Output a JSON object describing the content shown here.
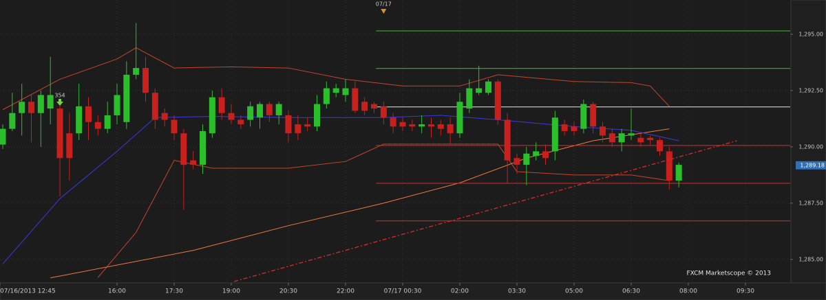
{
  "chart_data": {
    "type": "candlestick",
    "color_up": "#2bc02b",
    "color_down": "#c8201c",
    "xlim": [
      -0.29,
      82.7
    ],
    "ylim": [
      1283.96,
      1296.52
    ],
    "yticks": [
      {
        "value": 1285,
        "label": "1,285.00"
      },
      {
        "value": 1287.5,
        "label": "1,287.50"
      },
      {
        "value": 1290,
        "label": "1,290.00"
      },
      {
        "value": 1292.5,
        "label": "1,292.50"
      },
      {
        "value": 1295,
        "label": "1,295.00"
      }
    ],
    "xticks": [
      {
        "value": -1,
        "label": "07/16/2013 12:45"
      },
      {
        "value": 12,
        "label": "16:00"
      },
      {
        "value": 18,
        "label": "17:30"
      },
      {
        "value": 24,
        "label": "19:00"
      },
      {
        "value": 30,
        "label": "20:30"
      },
      {
        "value": 36,
        "label": "22:00"
      },
      {
        "value": 42,
        "label": "07/17 00:30"
      },
      {
        "value": 48,
        "label": "02:00"
      },
      {
        "value": 54,
        "label": "03:30"
      },
      {
        "value": 60,
        "label": "05:00"
      },
      {
        "value": 66,
        "label": "06:30"
      },
      {
        "value": 72,
        "label": "08:00"
      },
      {
        "value": 78,
        "label": "09:30"
      }
    ],
    "grid": true,
    "open": [
      1290.1,
      1290.8,
      1291.5,
      1292.0,
      1291.5,
      1291.7,
      1291.7,
      1290.6,
      1290.6,
      1291.8,
      1291.1,
      1290.8,
      1291.4,
      1291.1,
      1293.2,
      1293.5,
      1292.4,
      1291.5,
      1291.2,
      1290.6,
      1289.4,
      1289.2,
      1290.6,
      1292.2,
      1291.5,
      1291.2,
      1291.2,
      1291.3,
      1291.9,
      1291.4,
      1291.4,
      1291.0,
      1291.0,
      1290.9,
      1291.9,
      1292.4,
      1292.3,
      1292.6,
      1292.0,
      1291.9,
      1291.8,
      1291.3,
      1291.1,
      1291.0,
      1290.9,
      1291.0,
      1291.0,
      1291.0,
      1290.6,
      1291.7,
      1292.4,
      1292.4,
      1292.9,
      1291.2,
      1289.5,
      1289.2,
      1289.6,
      1289.8,
      1289.8,
      1291.0,
      1290.9,
      1290.8,
      1291.9,
      1290.9,
      1290.6,
      1290.2,
      1290.5,
      1290.4,
      1290.4,
      1290.3,
      1289.8,
      1288.5
    ],
    "high": [
      1291.0,
      1292.4,
      1292.8,
      1292.3,
      1292.5,
      1294.0,
      1292.0,
      1291.5,
      1292.8,
      1292.2,
      1291.4,
      1292.0,
      1292.8,
      1293.8,
      1295.5,
      1294.0,
      1292.6,
      1291.7,
      1291.4,
      1290.8,
      1289.8,
      1291.0,
      1292.5,
      1292.6,
      1291.9,
      1291.4,
      1292.0,
      1292.0,
      1292.0,
      1292.0,
      1291.6,
      1291.4,
      1291.3,
      1292.3,
      1292.9,
      1292.8,
      1293.0,
      1292.9,
      1292.2,
      1292.0,
      1292.0,
      1291.5,
      1291.3,
      1291.2,
      1291.4,
      1291.3,
      1291.2,
      1291.3,
      1292.4,
      1293.0,
      1293.6,
      1293.0,
      1293.0,
      1291.5,
      1289.7,
      1290.0,
      1290.2,
      1290.1,
      1291.6,
      1291.2,
      1291.1,
      1292.1,
      1292.0,
      1291.1,
      1290.8,
      1290.8,
      1291.7,
      1290.6,
      1290.5,
      1290.4,
      1290.0,
      1289.3
    ],
    "low": [
      1289.9,
      1290.7,
      1290.5,
      1290.2,
      1290.0,
      1291.0,
      1287.8,
      1288.5,
      1290.3,
      1290.3,
      1290.5,
      1290.6,
      1291.0,
      1290.8,
      1293.0,
      1292.0,
      1290.8,
      1290.9,
      1290.3,
      1287.2,
      1289.0,
      1288.8,
      1290.4,
      1291.2,
      1291.0,
      1290.8,
      1290.9,
      1290.8,
      1291.1,
      1291.0,
      1290.2,
      1290.3,
      1290.7,
      1290.7,
      1291.7,
      1292.2,
      1292.0,
      1291.5,
      1291.4,
      1291.5,
      1291.0,
      1290.6,
      1290.7,
      1290.7,
      1290.6,
      1290.4,
      1290.5,
      1290.1,
      1290.4,
      1291.5,
      1292.3,
      1292.3,
      1291.0,
      1288.4,
      1288.8,
      1288.3,
      1289.4,
      1289.2,
      1289.4,
      1290.5,
      1290.5,
      1290.6,
      1290.6,
      1290.2,
      1290.0,
      1289.8,
      1290.3,
      1290.0,
      1290.1,
      1289.6,
      1288.1,
      1288.2
    ],
    "close": [
      1290.8,
      1291.5,
      1292.0,
      1291.5,
      1292.3,
      1292.3,
      1289.5,
      1289.5,
      1291.8,
      1291.1,
      1290.8,
      1291.4,
      1292.3,
      1293.2,
      1293.5,
      1292.4,
      1291.2,
      1291.2,
      1290.6,
      1289.2,
      1289.2,
      1290.7,
      1292.2,
      1291.5,
      1291.2,
      1291.0,
      1291.8,
      1291.9,
      1291.4,
      1291.9,
      1290.6,
      1290.6,
      1290.9,
      1291.9,
      1292.6,
      1292.6,
      1292.6,
      1291.6,
      1291.6,
      1291.7,
      1291.3,
      1290.9,
      1290.9,
      1290.9,
      1291.0,
      1290.9,
      1290.8,
      1290.6,
      1292.0,
      1292.6,
      1292.6,
      1292.9,
      1291.2,
      1289.4,
      1289.2,
      1289.7,
      1289.8,
      1289.5,
      1291.3,
      1290.7,
      1290.7,
      1291.9,
      1290.9,
      1290.5,
      1290.2,
      1290.6,
      1290.6,
      1290.2,
      1290.3,
      1289.8,
      1288.5,
      1289.2
    ],
    "overlays": [
      {
        "color": "#c8452a",
        "x": [
          0,
          6,
          12,
          14,
          18,
          24,
          30,
          36,
          42,
          48,
          52,
          60,
          66,
          68,
          70
        ],
        "values": [
          1291.65,
          1293.0,
          1293.9,
          1294.4,
          1293.5,
          1293.55,
          1293.5,
          1293.0,
          1292.7,
          1292.7,
          1293.2,
          1292.9,
          1292.85,
          1292.7,
          1291.8
        ]
      },
      {
        "color": "#c8452a",
        "x": [
          10,
          14,
          18,
          22,
          30,
          36,
          40,
          48,
          52,
          54,
          60,
          66,
          70
        ],
        "values": [
          1284.2,
          1286.2,
          1289.4,
          1289.05,
          1289.05,
          1289.35,
          1290.12,
          1290.12,
          1290.12,
          1288.9,
          1288.75,
          1288.75,
          1288.5
        ]
      },
      {
        "color": "#f07840",
        "x": [
          5,
          20,
          30,
          40,
          48,
          55,
          62,
          70
        ],
        "values": [
          1284.18,
          1285.4,
          1286.5,
          1287.5,
          1288.4,
          1289.5,
          1290.27,
          1290.8
        ]
      },
      {
        "color": "#3a3ae0",
        "x": [
          0,
          6,
          12,
          16,
          22,
          30,
          40,
          46,
          52,
          60,
          66,
          71
        ],
        "values": [
          1284.8,
          1287.7,
          1289.8,
          1291.3,
          1291.35,
          1291.3,
          1291.3,
          1291.4,
          1291.2,
          1290.9,
          1290.73,
          1290.27
        ]
      }
    ],
    "trendline": {
      "color": "#e02a2a",
      "x": [
        24.3,
        77.1
      ],
      "values": [
        1284.02,
        1290.27
      ]
    },
    "levels": [
      {
        "value": 1295.15,
        "color": "#2fc82f"
      },
      {
        "value": 1293.48,
        "color": "#2fc82f"
      },
      {
        "value": 1291.77,
        "color": "#e8e8e8"
      },
      {
        "value": 1290.06,
        "color": "#e02a2a"
      },
      {
        "value": 1288.38,
        "color": "#e02a2a"
      },
      {
        "value": 1286.71,
        "color": "#e02a2a"
      }
    ],
    "levels_start": 39.2,
    "date_marker": {
      "x": 40,
      "label": "07/17"
    },
    "signal_marker": {
      "x": 6,
      "label": "354"
    },
    "last_price": {
      "value": 1289.18,
      "label": "1,289.18"
    },
    "watermark": "FXCM Marketscope © 2013"
  }
}
